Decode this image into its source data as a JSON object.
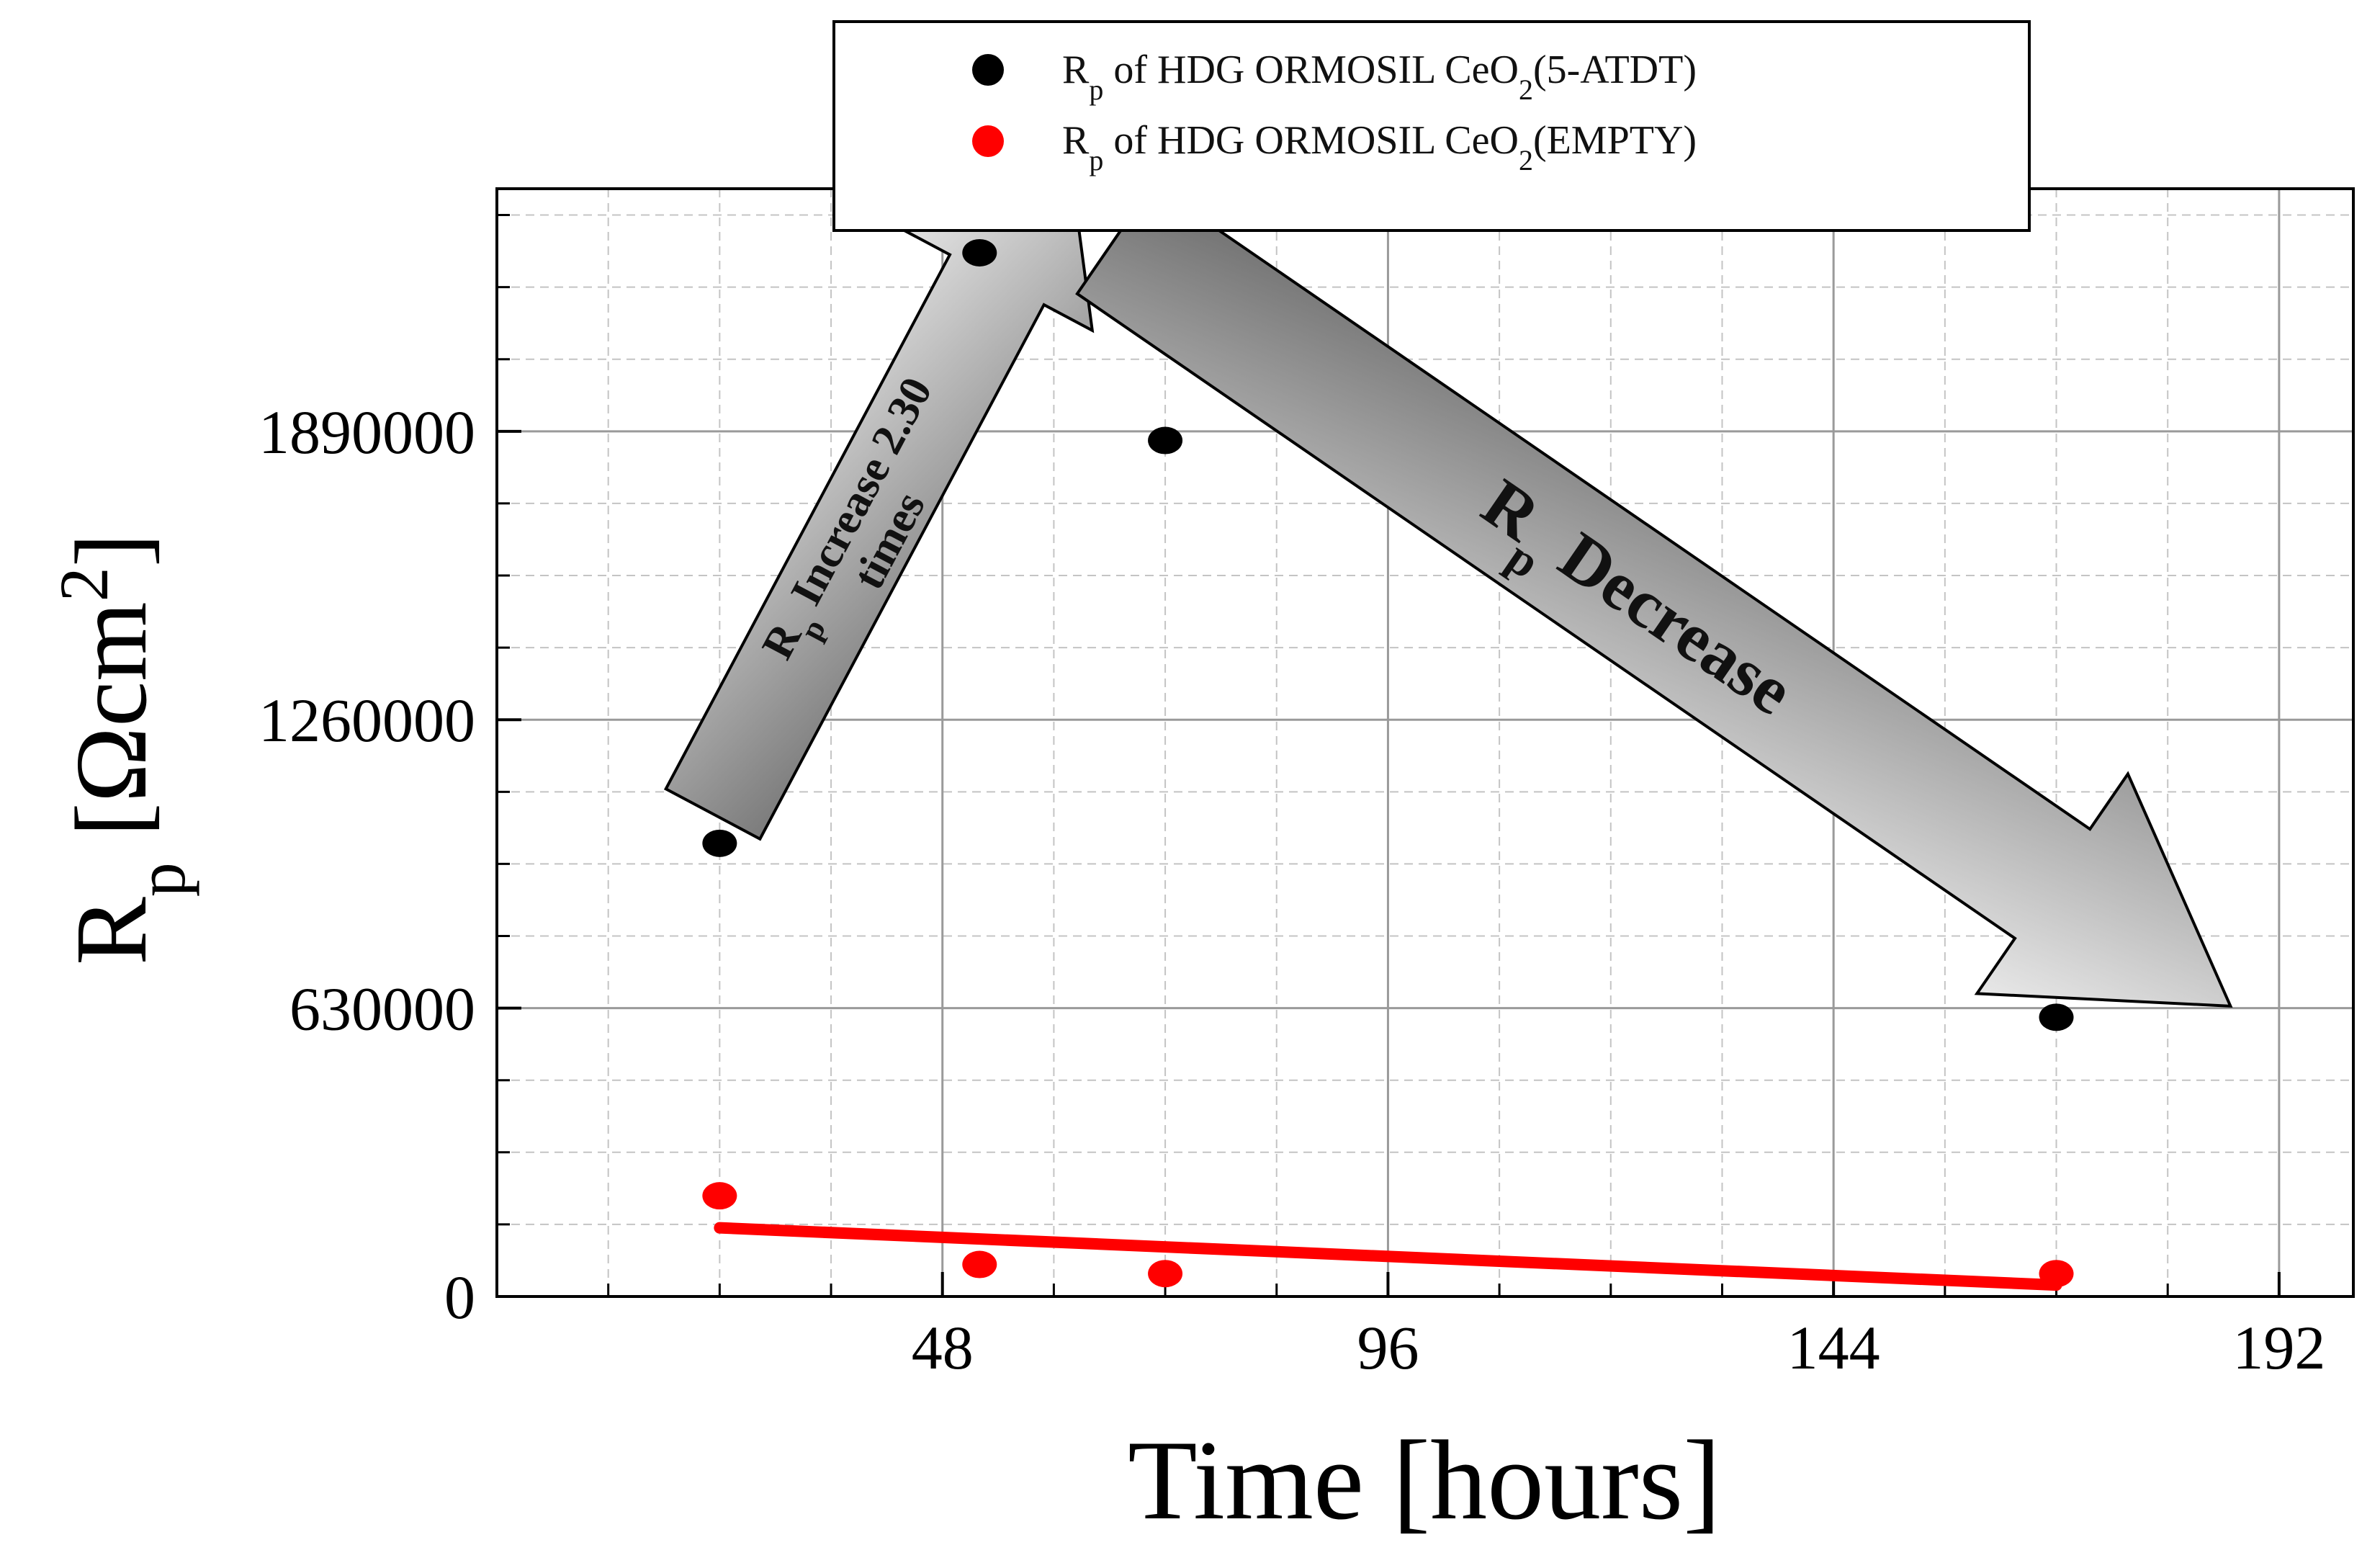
{
  "chart_data": {
    "type": "scatter",
    "title": "",
    "xlabel": "Time [hours]",
    "ylabel": {
      "main": "R",
      "sub": "p",
      "unit_open": " [Ωcm",
      "unit_sup": "2",
      "unit_close": "]"
    },
    "xlim": [
      0,
      200
    ],
    "ylim": [
      0,
      2420000
    ],
    "x_ticks": [
      48,
      96,
      144,
      192
    ],
    "y_ticks": [
      0,
      630000,
      1260000,
      1890000
    ],
    "grid": true,
    "legend_position": "top-center",
    "series": [
      {
        "name": {
          "main": "R",
          "sub": "p",
          "mid": " of HDG ORMOSIL CeO",
          "sub2": "2",
          "tail": "(5-ATDT)"
        },
        "color": "#000000",
        "x": [
          24,
          52,
          72,
          168
        ],
        "y": [
          990000,
          2280000,
          1870000,
          610000
        ]
      },
      {
        "name": {
          "main": "R",
          "sub": "p",
          "mid": " of HDG ORMOSIL CeO",
          "sub2": "2",
          "tail": "(EMPTY)"
        },
        "color": "#ff0000",
        "x": [
          24,
          52,
          72,
          168
        ],
        "y": [
          220000,
          70000,
          50000,
          50000
        ]
      }
    ],
    "trendline": {
      "series": 1,
      "color": "#ff0000",
      "x": [
        24,
        168
      ],
      "y": [
        150000,
        25000
      ]
    },
    "annotations": [
      {
        "main": "R",
        "sub": "p",
        "text": " Increase 2.30",
        "line2": "times"
      },
      {
        "main": "R",
        "sub": "p",
        "text": " Decrease"
      }
    ]
  }
}
